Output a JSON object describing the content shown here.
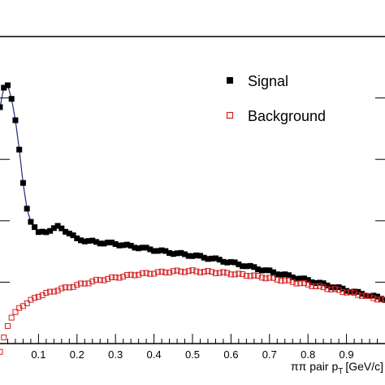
{
  "chart_data": {
    "type": "scatter",
    "xlabel": "ππ pair p",
    "xlabel_sub": "T",
    "xlabel_unit": "[GeV/c]",
    "xlim": [
      0.0,
      1.0
    ],
    "ylim": [
      0,
      100
    ],
    "x_ticks": [
      0.1,
      0.2,
      0.3,
      0.4,
      0.5,
      0.6,
      0.7,
      0.8,
      0.9
    ],
    "x_tick_labels": [
      "0.1",
      "0.2",
      "0.3",
      "0.4",
      "0.5",
      "0.6",
      "0.7",
      "0.8",
      "0.9"
    ],
    "y_ticks": [
      20,
      40,
      60,
      80
    ],
    "grid": false,
    "legend_position": "top-right",
    "series": [
      {
        "name": "Signal",
        "marker": "filled-square",
        "color": "#000000",
        "line_color": "#1f2a7a",
        "x": [
          0.0,
          0.01,
          0.02,
          0.03,
          0.04,
          0.05,
          0.06,
          0.07,
          0.08,
          0.09,
          0.1,
          0.12,
          0.14,
          0.15,
          0.16,
          0.18,
          0.2,
          0.25,
          0.3,
          0.35,
          0.4,
          0.45,
          0.5,
          0.55,
          0.6,
          0.65,
          0.7,
          0.75,
          0.8,
          0.85,
          0.9,
          0.95,
          1.0
        ],
        "y": [
          77,
          83,
          84,
          80,
          73,
          63,
          52,
          44,
          40,
          38,
          36,
          36.5,
          37.5,
          38,
          37.5,
          36,
          34,
          33,
          32.5,
          31.5,
          30.5,
          29.5,
          28.7,
          27.7,
          26.4,
          25,
          23.5,
          22,
          20.6,
          19,
          17.4,
          15.9,
          14.5
        ]
      },
      {
        "name": "Background",
        "marker": "open-square",
        "color": "#d42020",
        "x": [
          0.0,
          0.01,
          0.02,
          0.03,
          0.04,
          0.05,
          0.06,
          0.08,
          0.1,
          0.15,
          0.2,
          0.25,
          0.3,
          0.35,
          0.4,
          0.45,
          0.5,
          0.55,
          0.6,
          0.65,
          0.7,
          0.75,
          0.8,
          0.85,
          0.9,
          0.95,
          1.0
        ],
        "y": [
          -3,
          2,
          6,
          8.5,
          10,
          11.5,
          12.5,
          14,
          15.5,
          17.5,
          19,
          20.5,
          21.5,
          22.5,
          23,
          23.5,
          23.6,
          23.3,
          22.8,
          22.2,
          21.3,
          20.3,
          19.2,
          18,
          16.8,
          15.5,
          14
        ]
      }
    ]
  }
}
